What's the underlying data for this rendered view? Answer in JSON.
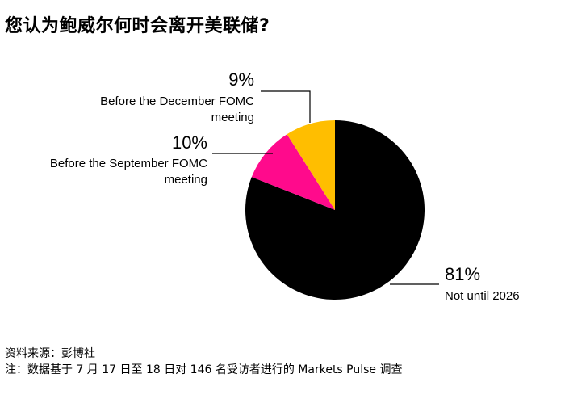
{
  "title": "您认为鲍威尔何时会离开美联储?",
  "chart_data": {
    "type": "pie",
    "title": "您认为鲍威尔何时会离开美联储?",
    "slices": [
      {
        "label": "Not until 2026",
        "value": 81,
        "value_label": "81%",
        "color": "#000000"
      },
      {
        "label": "Before the September FOMC meeting",
        "value": 10,
        "value_label": "10%",
        "color": "#ff0a8c"
      },
      {
        "label": "Before the December FOMC meeting",
        "value": 9,
        "value_label": "9%",
        "color": "#ffbe00"
      }
    ],
    "labels": {
      "not2026": {
        "pct": "81%",
        "line1": "Not until 2026"
      },
      "sep": {
        "pct": "10%",
        "line1": "Before the September FOMC",
        "line2": "meeting"
      },
      "dec": {
        "pct": "9%",
        "line1": "Before the December FOMC",
        "line2": "meeting"
      }
    }
  },
  "footer": {
    "source": "资料来源：彭博社",
    "note": "注：数据基于 7 月 17 日至 18 日对 146 名受访者进行的 Markets Pulse 调查"
  }
}
